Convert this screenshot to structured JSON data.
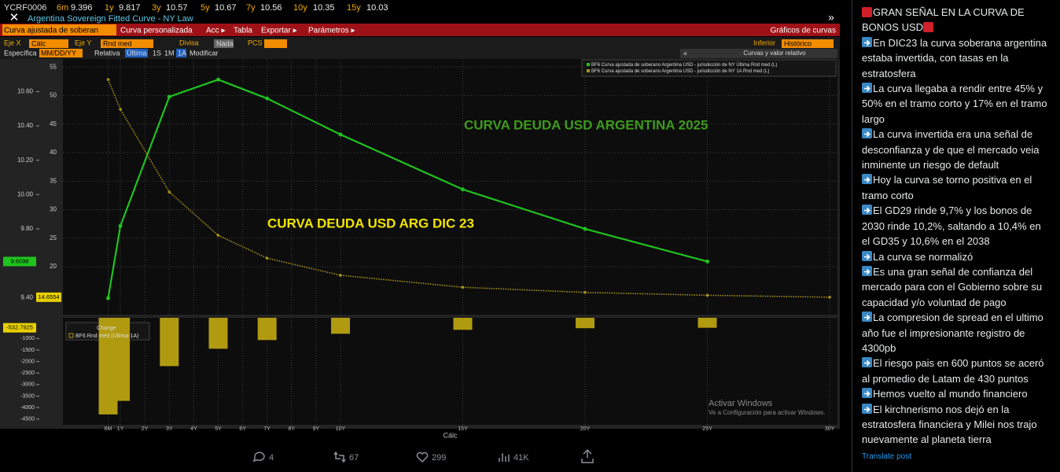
{
  "terminal": {
    "ticker": "YCRF0006",
    "tenors": [
      "6m",
      "1y",
      "3y",
      "5y",
      "7y",
      "10y",
      "15y"
    ],
    "subtitle": "Argentina Sovereign Fitted Curve - NY Law",
    "menu": [
      "Curva ajustada de soberan",
      "Curva personalizada",
      "Acc ▸",
      "Tabla",
      "Exportar ▸",
      "Parámetros ▸"
    ],
    "menu_right": "Gráficos de curvas",
    "row1": [
      {
        "label": "Eje X",
        "field": "Cálc"
      },
      {
        "label": "Eje Y",
        "field": "Rnd med"
      },
      {
        "label": "Divisa",
        "field": "Nada"
      },
      {
        "label": "PCS"
      },
      {
        "label": "Inferior",
        "field": "Histórico"
      }
    ],
    "row2": [
      "Específica",
      "MM/DD/YY",
      "Relativa",
      "Última",
      "1S",
      "1M",
      "1A",
      "Modificar"
    ],
    "panel_title": "Curvas y valor relativo",
    "watermark": [
      "Activar Windows",
      "Ve a Configuración para activar Windows."
    ]
  },
  "chart_data": [
    {
      "type": "line",
      "x": [
        0.5,
        1,
        3,
        5,
        7,
        10,
        15,
        20,
        25,
        30
      ],
      "xlim": [
        -1.35,
        30.32
      ],
      "ylim": [
        9.3,
        10.79
      ],
      "yticks": [
        {
          "value": 9.4,
          "label": "9.40"
        },
        {
          "value": 9.8,
          "label": "9.80"
        },
        {
          "value": 10,
          "label": "10.00"
        },
        {
          "value": 10.2,
          "label": "10.20"
        },
        {
          "value": 10.4,
          "label": "10.40"
        },
        {
          "value": 10.6,
          "label": "10.60"
        }
      ],
      "y2lim": [
        11.6,
        56.4
      ],
      "y2ticks": [
        20,
        25,
        30,
        35,
        40,
        45,
        50,
        55
      ],
      "grid": true,
      "series": [
        {
          "name": "BF6 Curva ajustada de soberano Argentina USD - jurisdicción de NY Última Rnd med (L)",
          "color": "#1fc21f",
          "values": [
            9.396,
            9.817,
            10.57,
            10.67,
            10.56,
            10.35,
            10.03,
            9.8,
            9.6098,
            null
          ]
        },
        {
          "name": "BF6 Curva ajustada de soberano Argentina USD - jurisdicción de NY 1A Rnd med (L)",
          "color": "#a89318",
          "axis": "y2",
          "values": [
            52.8,
            47.6,
            33.1,
            25.5,
            21.5,
            18.5,
            16.4,
            15.5,
            15.0,
            14.6554
          ]
        }
      ],
      "annotations": [
        {
          "text": "CURVA DEUDA USD ARGENTINA 2025",
          "color": "#3d9b1b"
        },
        {
          "text": "CURVA DEUDA USD ARG DIC 23",
          "color": "#f2e500"
        }
      ]
    },
    {
      "type": "bar",
      "title": "Change",
      "x": [
        0.5,
        1,
        3,
        5,
        7,
        10,
        15,
        20,
        25
      ],
      "xlim": [
        -1.35,
        30.32
      ],
      "xticks": [
        {
          "value": 0.5,
          "label": "6M"
        },
        {
          "value": 1,
          "label": "1Y"
        },
        {
          "value": 2,
          "label": "2Y"
        },
        {
          "value": 3,
          "label": "3Y"
        },
        {
          "value": 4,
          "label": "4Y"
        },
        {
          "value": 5,
          "label": "5Y"
        },
        {
          "value": 6,
          "label": "6Y"
        },
        {
          "value": 7,
          "label": "7Y"
        },
        {
          "value": 8,
          "label": "8Y"
        },
        {
          "value": 9,
          "label": "9Y"
        },
        {
          "value": 10,
          "label": "10Y"
        },
        {
          "value": 15,
          "label": "15Y"
        },
        {
          "value": 20,
          "label": "20Y"
        },
        {
          "value": 25,
          "label": "25Y"
        },
        {
          "value": 30,
          "label": "30Y"
        }
      ],
      "xlabel": "Cálc",
      "ylim": [
        -4750,
        -100
      ],
      "yticks": [
        -1000,
        -1500,
        -2000,
        -2500,
        -3000,
        -3500,
        -4000,
        -4500
      ],
      "grid": true,
      "series": [
        {
          "name": "BF6 Rnd med (Última-1A)",
          "color": "#b09a10",
          "values": [
            -4300,
            -3710,
            -2200,
            -1445,
            -1067,
            -793,
            -621,
            -552,
            -532.7925
          ]
        }
      ]
    }
  ],
  "post": {
    "title": "GRAN SEÑAL EN LA CURVA DE BONOS USD",
    "points": [
      "En DIC23 la curva soberana argentina estaba invertida, con tasas en la estratosfera",
      "La curva llegaba a rendir entre 45% y 50% en el tramo corto y 17% en el tramo largo",
      "La curva invertida era una señal de desconfianza y de que el mercado veia inminente un riesgo de default",
      "Hoy la curva se torno positiva en el tramo corto",
      "El GD29 rinde 9,7% y los bonos de 2030 rinde 10,2%, saltando a 10,4% en el GD35 y 10,6% en el 2038",
      "La curva se normalizó",
      "Es una gran señal de confianza del mercado para con el Gobierno sobre su capacidad y/o voluntad de pago",
      "La compresion de spread en el ultimo año fue el impresionante registro de 4300pb",
      "El riesgo pais en 600 puntos se aceró al promedio de Latam de 430 puntos",
      "Hemos vuelto al mundo financiero",
      "El kirchnerismo nos dejó en la estratosfera financiera y Milei nos trajo nuevamente al planeta tierra"
    ],
    "translate": "Translate post",
    "stats": {
      "replies": 4,
      "reposts": 67,
      "likes": 299,
      "views": "41K"
    }
  }
}
